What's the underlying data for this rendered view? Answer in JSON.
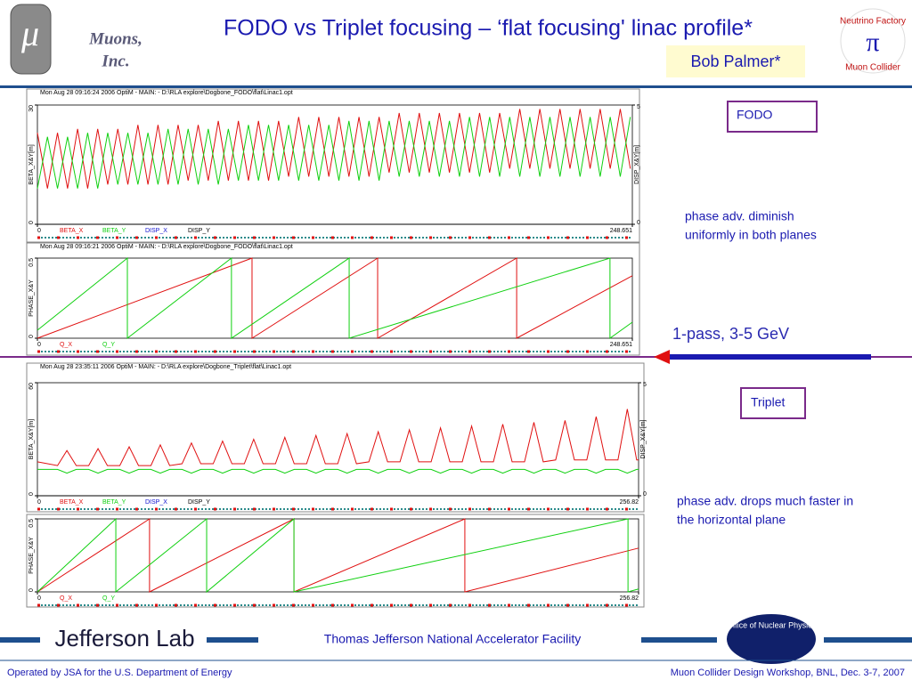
{
  "header": {
    "logo": "μ",
    "org1": "Muons,",
    "org2": "Inc.",
    "title": "FODO vs Triplet focusing – ‘flat focusing' linac profile*",
    "author": "Bob Palmer*",
    "logo_top": "Neutrino Factory",
    "logo_bottom": "Muon Collider"
  },
  "chart_data": [
    {
      "type": "line",
      "header": "Mon Aug 28 09:16:24 2006    OptiM - MAIN: - D:\\RLA explore\\Dogbone_FODO\\flat\\Linac1.opt",
      "ylabel": "BETA_X&Y[m]",
      "y2label": "DISP_X&Y[m]",
      "xlim": [
        0,
        248.651
      ],
      "xticks": [
        0,
        248.651
      ],
      "ylim": [
        0,
        30
      ],
      "yticks": [
        0,
        30
      ],
      "y2lim": [
        0,
        5
      ],
      "y2ticks": [
        0,
        5
      ],
      "x": [
        0,
        4.2,
        8.4,
        12.6,
        16.8,
        21,
        25.2,
        29.4,
        33.6,
        37.8,
        42,
        46.2,
        50.4,
        54.6,
        58.8,
        63,
        67.2,
        71.4,
        75.6,
        79.8,
        84,
        88.2,
        92.4,
        96.6,
        100.8,
        105,
        109.2,
        113.4,
        117.6,
        121.8,
        126,
        130.2,
        134.4,
        138.6,
        142.8,
        147,
        151.2,
        155.4,
        159.6,
        163.8,
        168,
        172.2,
        176.4,
        180.6,
        184.8,
        189,
        193.2,
        197.4,
        201.6,
        205.8,
        210,
        214.2,
        218.4,
        222.6,
        226.8,
        231,
        235.2,
        239.4,
        243.6,
        247.8
      ],
      "series": [
        {
          "name": "BETA_X",
          "color": "#e01010",
          "values": [
            23,
            9,
            23,
            9,
            24,
            9,
            24,
            10,
            24,
            10,
            25,
            10,
            25,
            10,
            25,
            11,
            25,
            11,
            26,
            11,
            26,
            11,
            26,
            11,
            26,
            12,
            27,
            12,
            27,
            12,
            27,
            12,
            27,
            12,
            27,
            13,
            28,
            13,
            28,
            13,
            28,
            13,
            28,
            13,
            28,
            13,
            28,
            14,
            29,
            14,
            29,
            14,
            29,
            14,
            29,
            14,
            29,
            14,
            29,
            14
          ]
        },
        {
          "name": "BETA_Y",
          "color": "#10d010",
          "values": [
            9,
            22,
            9,
            22,
            9,
            23,
            9,
            23,
            10,
            23,
            10,
            23,
            10,
            24,
            10,
            24,
            10,
            24,
            10,
            24,
            11,
            25,
            11,
            25,
            11,
            25,
            11,
            25,
            11,
            25,
            11,
            26,
            11,
            26,
            11,
            26,
            12,
            26,
            12,
            26,
            12,
            26,
            12,
            27,
            12,
            27,
            12,
            27,
            12,
            27,
            12,
            27,
            12,
            27,
            12,
            27,
            12,
            27,
            12,
            27
          ]
        },
        {
          "name": "DISP_X",
          "color": "#1010d0",
          "axis": "y2",
          "x": [
            0,
            248.651
          ],
          "values": [
            0,
            0
          ]
        },
        {
          "name": "DISP_Y",
          "color": "#000000",
          "axis": "y2",
          "x": [
            0,
            248.651
          ],
          "values": [
            0,
            0
          ]
        }
      ]
    },
    {
      "type": "line",
      "header": "Mon Aug 28 09:16:21 2006    OptiM - MAIN: - D:\\RLA explore\\Dogbone_FODO\\flat\\Linac1.opt",
      "ylabel": "PHASE_X&Y",
      "xlim": [
        0,
        248.651
      ],
      "xticks": [
        0,
        248.651
      ],
      "ylim": [
        0,
        0.5
      ],
      "yticks": [
        0,
        0.5
      ],
      "series": [
        {
          "name": "Q_X",
          "color": "#e01010",
          "x": [
            0,
            89.7,
            89.7,
            142.2,
            142.2,
            200.3,
            200.3,
            248.651
          ],
          "values": [
            0,
            0.5,
            0,
            0.5,
            0,
            0.5,
            0,
            0.39
          ]
        },
        {
          "name": "Q_Y",
          "color": "#10d010",
          "x": [
            0,
            37.6,
            37.6,
            81.1,
            81.1,
            130.3,
            130.3,
            239.3,
            239.3,
            248.651
          ],
          "values": [
            0.05,
            0.5,
            0,
            0.5,
            0,
            0.5,
            0,
            0.5,
            0,
            0.1
          ]
        }
      ]
    },
    {
      "type": "line",
      "header": "Mon Aug 28 23:35:11 2006    OptiM - MAIN: - D:\\RLA explore\\Dogbone_Triplet\\flat\\Linac1.opt",
      "ylabel": "BETA_X&Y[m]",
      "y2label": "DISP_X&Y[m]",
      "xlim": [
        0,
        256.82
      ],
      "xticks": [
        0,
        256.82
      ],
      "ylim": [
        0,
        60
      ],
      "yticks": [
        0,
        60
      ],
      "y2lim": [
        0,
        5
      ],
      "y2ticks": [
        0,
        5
      ],
      "x": [
        0,
        8.6,
        12.6,
        16.6,
        21.9,
        25.9,
        29.9,
        35.2,
        39.2,
        43.2,
        48.5,
        52.5,
        56.5,
        61.8,
        65.8,
        69.8,
        75.1,
        79.1,
        83.1,
        88.4,
        92.4,
        96.4,
        101.7,
        105.7,
        109.7,
        115,
        119,
        123,
        128.3,
        132.3,
        136.3,
        141.6,
        145.6,
        149.6,
        154.9,
        158.9,
        162.9,
        168.2,
        172.2,
        176.2,
        181.5,
        185.5,
        189.5,
        194.8,
        198.8,
        202.8,
        208.1,
        212.1,
        216.1,
        221.4,
        225.4,
        229.4,
        234.7,
        238.7,
        242.7,
        248,
        252,
        256,
        256.82
      ],
      "series": [
        {
          "name": "BETA_X",
          "color": "#e01010",
          "values": [
            18,
            16,
            24,
            16,
            16,
            25,
            16,
            16,
            26,
            16,
            16,
            27,
            16,
            17,
            28,
            17,
            17,
            29,
            17,
            17,
            30,
            17,
            17,
            31,
            17,
            17,
            32,
            17,
            17,
            33,
            17,
            18,
            34,
            18,
            18,
            35,
            18,
            18,
            36,
            18,
            18,
            37,
            18,
            18,
            38,
            18,
            18,
            39,
            18,
            19,
            40,
            19,
            19,
            42,
            19,
            19,
            46,
            19,
            19
          ]
        },
        {
          "name": "BETA_Y",
          "color": "#10d010",
          "values": [
            14,
            14,
            12,
            14,
            14,
            12,
            14,
            14,
            12,
            14,
            14,
            12,
            14,
            14,
            12,
            14,
            14,
            12,
            14,
            14,
            12,
            14,
            14,
            12,
            14,
            14,
            12,
            14,
            14,
            12,
            14,
            14,
            12,
            14,
            14,
            12,
            14,
            14,
            12,
            14,
            14,
            12,
            14,
            14,
            12,
            14,
            14,
            12,
            14,
            14,
            12,
            14,
            14,
            12,
            14,
            14,
            12,
            14,
            14
          ]
        },
        {
          "name": "DISP_X",
          "color": "#1010d0",
          "axis": "y2",
          "x": [
            0,
            256.82
          ],
          "values": [
            0,
            0
          ]
        },
        {
          "name": "DISP_Y",
          "color": "#000000",
          "axis": "y2",
          "x": [
            0,
            256.82
          ],
          "values": [
            0,
            0
          ]
        }
      ]
    },
    {
      "type": "line",
      "header": "",
      "ylabel": "PHASE_X&Y",
      "xlim": [
        0,
        256.82
      ],
      "xticks": [
        0,
        256.82
      ],
      "ylim": [
        0,
        0.5
      ],
      "yticks": [
        0,
        0.5
      ],
      "series": [
        {
          "name": "Q_X",
          "color": "#e01010",
          "x": [
            0,
            47.9,
            47.9,
            109.6,
            109.6,
            182.6,
            182.6,
            256.82
          ],
          "values": [
            0,
            0.5,
            0,
            0.5,
            0,
            0.5,
            0,
            0.3
          ]
        },
        {
          "name": "Q_Y",
          "color": "#10d010",
          "x": [
            0,
            33.5,
            33.5,
            72.3,
            72.3,
            109.6,
            109.6,
            252.3,
            252.3,
            256.82
          ],
          "values": [
            0,
            0.5,
            0,
            0.5,
            0,
            0.5,
            0,
            0.5,
            0,
            0.02
          ]
        }
      ]
    }
  ],
  "notes": {
    "fodo": "FODO",
    "fodo_note1": "phase adv. diminish",
    "fodo_note2": "uniformly in both planes",
    "pass": "1-pass, 3-5 GeV",
    "triplet": "Triplet",
    "triplet_note1": "phase adv. drops much faster in",
    "triplet_note2": "the horizontal plane"
  },
  "footer": {
    "jlab": "Jefferson Lab",
    "facility": "Thomas Jefferson National Accelerator Facility",
    "onp": "Office of Nuclear Physics",
    "operated": "Operated by JSA for the U.S. Department of Energy",
    "workshop": "Muon Collider Design Workshop, BNL, Dec. 3-7, 2007"
  }
}
